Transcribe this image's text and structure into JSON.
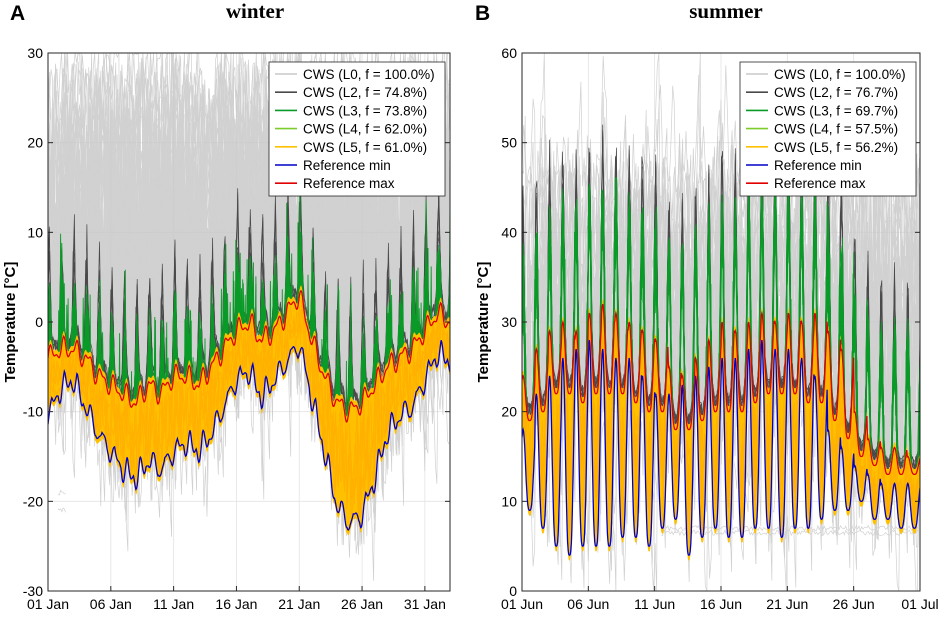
{
  "chart_data": [
    {
      "type": "line",
      "panel_letter": "A",
      "title": "winter",
      "xlabel": "",
      "ylabel": "Temperature [°C]",
      "ylim": [
        -30,
        30
      ],
      "yticks": [
        -30,
        -20,
        -10,
        0,
        10,
        20,
        30
      ],
      "xlim_days": [
        0,
        32
      ],
      "xticks": [
        {
          "day": 0,
          "label": "01 Jan"
        },
        {
          "day": 5,
          "label": "06 Jan"
        },
        {
          "day": 10,
          "label": "11 Jan"
        },
        {
          "day": 15,
          "label": "16 Jan"
        },
        {
          "day": 20,
          "label": "21 Jan"
        },
        {
          "day": 25,
          "label": "26 Jan"
        },
        {
          "day": 30,
          "label": "31 Jan"
        }
      ],
      "grid": true,
      "legend_position": "top-right",
      "legend": [
        {
          "label": "CWS (L0, f = 100.0%)",
          "color": "#c8c8c8"
        },
        {
          "label": "CWS (L2, f = 74.8%)",
          "color": "#4a4a4a"
        },
        {
          "label": "CWS (L3, f = 73.8%)",
          "color": "#0a9a28"
        },
        {
          "label": "CWS (L4, f = 62.0%)",
          "color": "#7ccc2c"
        },
        {
          "label": "CWS (L5, f = 61.0%)",
          "color": "#ffc000"
        },
        {
          "label": "Reference min",
          "color": "#0000c8"
        },
        {
          "label": "Reference max",
          "color": "#e00000"
        }
      ],
      "series": [
        {
          "name": "Reference max",
          "days": [
            0,
            1,
            2,
            3,
            4,
            5,
            6,
            7,
            8,
            9,
            10,
            11,
            12,
            13,
            14,
            15,
            16,
            17,
            18,
            19,
            20,
            21,
            22,
            23,
            24,
            25,
            26,
            27,
            28,
            29,
            30,
            31,
            32
          ],
          "values": [
            -4,
            -3,
            -3,
            -4,
            -6,
            -7,
            -8,
            -9,
            -7,
            -8,
            -6,
            -6,
            -7,
            -5,
            -3,
            -1,
            0,
            -2,
            -1,
            1,
            3,
            -2,
            -6,
            -9,
            -10,
            -9,
            -7,
            -5,
            -4,
            -3,
            -1,
            1,
            0
          ]
        },
        {
          "name": "Reference min",
          "days": [
            0,
            1,
            2,
            3,
            4,
            5,
            6,
            7,
            8,
            9,
            10,
            11,
            12,
            13,
            14,
            15,
            16,
            17,
            18,
            19,
            20,
            21,
            22,
            23,
            24,
            25,
            26,
            27,
            28,
            29,
            30,
            31,
            32
          ],
          "values": [
            -10,
            -7,
            -6,
            -9,
            -12,
            -14,
            -16,
            -17,
            -15,
            -16,
            -14,
            -13,
            -14,
            -12,
            -9,
            -6,
            -5,
            -8,
            -6,
            -4,
            -2,
            -8,
            -14,
            -20,
            -22,
            -21,
            -17,
            -12,
            -10,
            -9,
            -6,
            -3,
            -4
          ]
        }
      ]
    },
    {
      "type": "line",
      "panel_letter": "B",
      "title": "summer",
      "xlabel": "",
      "ylabel": "Temperature [°C]",
      "ylim": [
        0,
        60
      ],
      "yticks": [
        0,
        10,
        20,
        30,
        40,
        50,
        60
      ],
      "xlim_days": [
        0,
        30
      ],
      "xticks": [
        {
          "day": 0,
          "label": "01 Jun"
        },
        {
          "day": 5,
          "label": "06 Jun"
        },
        {
          "day": 10,
          "label": "11 Jun"
        },
        {
          "day": 15,
          "label": "16 Jun"
        },
        {
          "day": 20,
          "label": "21 Jun"
        },
        {
          "day": 25,
          "label": "26 Jun"
        },
        {
          "day": 30,
          "label": "01 Jul"
        }
      ],
      "grid": true,
      "legend_position": "top-right",
      "legend": [
        {
          "label": "CWS (L0, f = 100.0%)",
          "color": "#c8c8c8"
        },
        {
          "label": "CWS (L2, f = 76.7%)",
          "color": "#4a4a4a"
        },
        {
          "label": "CWS (L3, f = 69.7%)",
          "color": "#0a9a28"
        },
        {
          "label": "CWS (L4, f = 57.5%)",
          "color": "#7ccc2c"
        },
        {
          "label": "CWS (L5, f = 56.2%)",
          "color": "#ffc000"
        },
        {
          "label": "Reference min",
          "color": "#0000c8"
        },
        {
          "label": "Reference max",
          "color": "#e00000"
        }
      ],
      "series": [
        {
          "name": "Reference max",
          "daily_peak": [
            24,
            27,
            29,
            30,
            29,
            31,
            32,
            31,
            30,
            29,
            28,
            25,
            24,
            26,
            28,
            30,
            29,
            30,
            31,
            30,
            31,
            30,
            31,
            29,
            27,
            20,
            17,
            16,
            16,
            15
          ],
          "daily_trough": [
            19,
            20,
            22,
            22,
            21,
            22,
            22,
            22,
            21,
            20,
            20,
            18,
            18,
            19,
            20,
            20,
            20,
            21,
            22,
            22,
            22,
            21,
            21,
            19,
            17,
            15,
            14,
            13,
            13,
            13
          ]
        },
        {
          "name": "Reference min",
          "daily_peak": [
            18,
            22,
            24,
            26,
            27,
            28,
            27,
            26,
            26,
            24,
            22,
            22,
            23,
            24,
            25,
            26,
            26,
            27,
            28,
            27,
            27,
            26,
            24,
            18,
            16,
            14,
            13,
            12,
            12,
            12
          ],
          "daily_trough": [
            9,
            7,
            5,
            4,
            5,
            5,
            5,
            6,
            6,
            5,
            7,
            8,
            4,
            6,
            7,
            6,
            6,
            7,
            7,
            6,
            7,
            7,
            8,
            9,
            9,
            10,
            8,
            8,
            7,
            7
          ]
        }
      ]
    }
  ]
}
